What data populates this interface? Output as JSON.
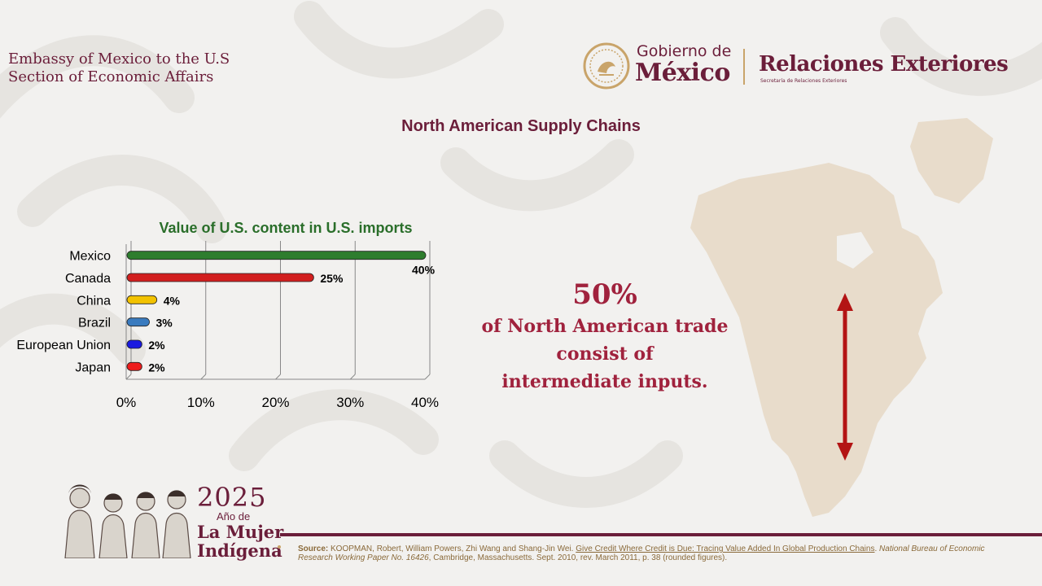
{
  "embassy": {
    "line1": "Embassy of Mexico to the U.S",
    "line2": "Section of Economic Affairs"
  },
  "logo": {
    "gobierno_de": "Gobierno de",
    "mexico": "México",
    "relaciones": "Relaciones Exteriores",
    "relaciones_sub": "Secretaría de Relaciones Exteriores"
  },
  "page_title": "North American Supply Chains",
  "chart_data": {
    "type": "bar",
    "orientation": "horizontal",
    "title": "Value of U.S. content in U.S. imports",
    "categories": [
      "Mexico",
      "Canada",
      "China",
      "Brazil",
      "European Union",
      "Japan"
    ],
    "values": [
      40,
      25,
      4,
      3,
      2,
      2
    ],
    "data_labels": [
      "40%",
      "25%",
      "4%",
      "3%",
      "2%",
      "2%"
    ],
    "colors": [
      "#2e7d2e",
      "#d21f1f",
      "#f2c200",
      "#3a7bbf",
      "#1a1ae0",
      "#ee1c1c"
    ],
    "xlim": [
      0,
      40
    ],
    "x_ticks": [
      "0%",
      "10%",
      "20%",
      "30%",
      "40%"
    ],
    "grid": true,
    "legend": "none"
  },
  "stat": {
    "number": "50%",
    "line1": "of North American trade",
    "line2": "consist of",
    "line3": "intermediate inputs."
  },
  "year_logo": {
    "year": "2025",
    "anio_de": "Año de",
    "la_mujer": "La Mujer",
    "indigena": "Indígena"
  },
  "source": {
    "label": "Source:",
    "authors": " KOOPMAN, Robert, William Powers, Zhi Wang and Shang-Jin Wei. ",
    "title": "Give Credit  Where Credit is Due: Tracing Value Added In Global Production Chains",
    "sep": ". ",
    "series": "National Bureau of Economic Research Working Paper No. 16426",
    "rest": ", Cambridge, Massachusetts. Sept. 2010, rev. March 2011, p. 38 (rounded figures)."
  },
  "colors": {
    "brand": "#6b1e3a",
    "accent_red": "#a0223d",
    "gold": "#c9a46a",
    "map_fill": "#e8dccb",
    "arrow": "#b31414"
  }
}
